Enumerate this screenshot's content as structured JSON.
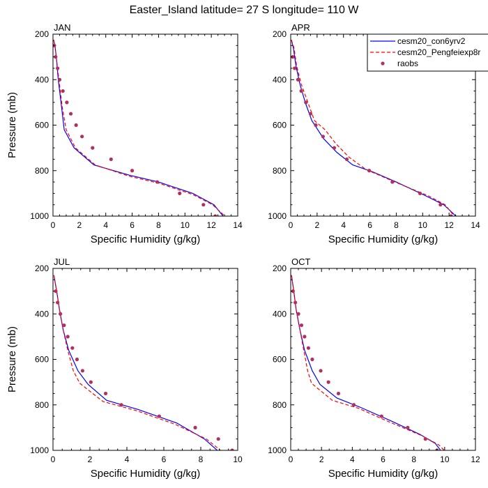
{
  "figure": {
    "title": "Easter_Island  latitude= 27 S longitude= 110 W"
  },
  "legend": {
    "entries": [
      {
        "label": "cesm20_con6yrv2",
        "style": "solid-line",
        "color": "#0000ff"
      },
      {
        "label": "cesm20_Pengfeiexp8r",
        "style": "dashed-line",
        "color": "#ff0000"
      },
      {
        "label": "raobs",
        "style": "marker",
        "color": "#b03060"
      }
    ]
  },
  "chart_data": [
    {
      "type": "line",
      "title": "JAN",
      "xlabel": "Specific Humidity (g/kg)",
      "ylabel": "Pressure (mb)",
      "xlim": [
        0,
        14
      ],
      "ylim": [
        1000,
        200
      ],
      "xticks": [
        0,
        2,
        4,
        6,
        8,
        10,
        12,
        14
      ],
      "yticks": [
        200,
        400,
        600,
        800,
        1000
      ],
      "series": [
        {
          "name": "cesm20_con6yrv2",
          "points": [
            [
              0.05,
              225
            ],
            [
              0.15,
              250
            ],
            [
              0.25,
              300
            ],
            [
              0.4,
              400
            ],
            [
              0.65,
              520
            ],
            [
              0.85,
              620
            ],
            [
              1.6,
              700
            ],
            [
              3.1,
              775
            ],
            [
              5.8,
              820
            ],
            [
              8.0,
              850
            ],
            [
              10.6,
              900
            ],
            [
              12.2,
              950
            ],
            [
              13.1,
              1015
            ]
          ]
        },
        {
          "name": "cesm20_Pengfeiexp8r",
          "points": [
            [
              0.05,
              225
            ],
            [
              0.15,
              250
            ],
            [
              0.25,
              300
            ],
            [
              0.45,
              400
            ],
            [
              0.7,
              520
            ],
            [
              1.0,
              620
            ],
            [
              1.7,
              700
            ],
            [
              3.2,
              775
            ],
            [
              5.8,
              825
            ],
            [
              8.0,
              855
            ],
            [
              10.6,
              905
            ],
            [
              12.1,
              950
            ],
            [
              13.3,
              1015
            ]
          ]
        },
        {
          "name": "raobs",
          "points": [
            [
              0.1,
              250
            ],
            [
              0.2,
              300
            ],
            [
              0.35,
              350
            ],
            [
              0.5,
              400
            ],
            [
              0.75,
              450
            ],
            [
              1.05,
              500
            ],
            [
              1.35,
              550
            ],
            [
              1.75,
              600
            ],
            [
              2.2,
              650
            ],
            [
              3.0,
              700
            ],
            [
              4.4,
              750
            ],
            [
              6.0,
              800
            ],
            [
              7.9,
              850
            ],
            [
              9.6,
              900
            ],
            [
              11.4,
              950
            ],
            [
              12.3,
              1000
            ]
          ]
        }
      ]
    },
    {
      "type": "line",
      "title": "APR",
      "xlabel": "Specific Humidity (g/kg)",
      "ylabel": "",
      "xlim": [
        0,
        14
      ],
      "ylim": [
        1000,
        200
      ],
      "xticks": [
        0,
        2,
        4,
        6,
        8,
        10,
        12,
        14
      ],
      "yticks": [
        200,
        400,
        600,
        800,
        1000
      ],
      "series": [
        {
          "name": "cesm20_con6yrv2",
          "points": [
            [
              0.05,
              225
            ],
            [
              0.2,
              260
            ],
            [
              0.4,
              340
            ],
            [
              0.7,
              420
            ],
            [
              1.1,
              500
            ],
            [
              1.6,
              580
            ],
            [
              2.5,
              660
            ],
            [
              3.5,
              720
            ],
            [
              4.7,
              775
            ],
            [
              6.2,
              805
            ],
            [
              8.0,
              850
            ],
            [
              10.2,
              910
            ],
            [
              11.6,
              950
            ],
            [
              12.8,
              1015
            ]
          ]
        },
        {
          "name": "cesm20_Pengfeiexp8r",
          "points": [
            [
              0.05,
              225
            ],
            [
              0.25,
              260
            ],
            [
              0.45,
              340
            ],
            [
              0.8,
              420
            ],
            [
              1.3,
              500
            ],
            [
              1.8,
              580
            ],
            [
              2.6,
              620
            ],
            [
              3.4,
              680
            ],
            [
              4.4,
              740
            ],
            [
              5.7,
              795
            ],
            [
              7.9,
              850
            ],
            [
              10.4,
              910
            ],
            [
              11.7,
              950
            ],
            [
              12.6,
              1015
            ]
          ]
        },
        {
          "name": "raobs",
          "points": [
            [
              0.15,
              300
            ],
            [
              0.3,
              350
            ],
            [
              0.55,
              400
            ],
            [
              0.8,
              450
            ],
            [
              1.15,
              500
            ],
            [
              1.5,
              550
            ],
            [
              1.9,
              600
            ],
            [
              2.45,
              650
            ],
            [
              3.3,
              700
            ],
            [
              4.25,
              750
            ],
            [
              5.95,
              800
            ],
            [
              7.7,
              850
            ],
            [
              9.8,
              900
            ],
            [
              11.35,
              950
            ],
            [
              12.15,
              1000
            ]
          ]
        }
      ]
    },
    {
      "type": "line",
      "title": "JUL",
      "xlabel": "Specific Humidity (g/kg)",
      "ylabel": "Pressure (mb)",
      "xlim": [
        0,
        10
      ],
      "ylim": [
        1000,
        200
      ],
      "xticks": [
        0,
        2,
        4,
        6,
        8,
        10
      ],
      "yticks": [
        200,
        400,
        600,
        800,
        1000
      ],
      "series": [
        {
          "name": "cesm20_con6yrv2",
          "points": [
            [
              0.05,
              230
            ],
            [
              0.2,
              300
            ],
            [
              0.35,
              380
            ],
            [
              0.55,
              470
            ],
            [
              0.85,
              560
            ],
            [
              1.35,
              650
            ],
            [
              1.9,
              710
            ],
            [
              2.9,
              780
            ],
            [
              4.6,
              820
            ],
            [
              6.7,
              880
            ],
            [
              8.2,
              950
            ],
            [
              9.1,
              1015
            ]
          ]
        },
        {
          "name": "cesm20_Pengfeiexp8r",
          "points": [
            [
              0.05,
              230
            ],
            [
              0.2,
              300
            ],
            [
              0.35,
              380
            ],
            [
              0.55,
              470
            ],
            [
              0.8,
              560
            ],
            [
              1.1,
              650
            ],
            [
              1.45,
              705
            ],
            [
              2.7,
              785
            ],
            [
              4.5,
              825
            ],
            [
              6.6,
              885
            ],
            [
              8.3,
              950
            ],
            [
              9.3,
              1015
            ]
          ]
        },
        {
          "name": "raobs",
          "points": [
            [
              0.15,
              300
            ],
            [
              0.25,
              350
            ],
            [
              0.4,
              400
            ],
            [
              0.6,
              450
            ],
            [
              0.8,
              500
            ],
            [
              1.05,
              550
            ],
            [
              1.3,
              600
            ],
            [
              1.6,
              650
            ],
            [
              2.05,
              700
            ],
            [
              2.85,
              750
            ],
            [
              3.7,
              800
            ],
            [
              5.75,
              850
            ],
            [
              7.7,
              900
            ],
            [
              8.95,
              950
            ],
            [
              9.7,
              1000
            ]
          ]
        }
      ]
    },
    {
      "type": "line",
      "title": "OCT",
      "xlabel": "Specific Humidity (g/kg)",
      "ylabel": "",
      "xlim": [
        0,
        12
      ],
      "ylim": [
        1000,
        200
      ],
      "xticks": [
        0,
        2,
        4,
        6,
        8,
        10,
        12
      ],
      "yticks": [
        200,
        400,
        600,
        800,
        1000
      ],
      "series": [
        {
          "name": "cesm20_con6yrv2",
          "points": [
            [
              0.05,
              230
            ],
            [
              0.2,
              300
            ],
            [
              0.35,
              380
            ],
            [
              0.6,
              470
            ],
            [
              0.9,
              560
            ],
            [
              1.4,
              650
            ],
            [
              1.9,
              710
            ],
            [
              3.0,
              770
            ],
            [
              4.5,
              810
            ],
            [
              6.5,
              870
            ],
            [
              8.4,
              930
            ],
            [
              9.4,
              970
            ],
            [
              9.9,
              1015
            ]
          ]
        },
        {
          "name": "cesm20_Pengfeiexp8r",
          "points": [
            [
              0.05,
              230
            ],
            [
              0.2,
              300
            ],
            [
              0.35,
              380
            ],
            [
              0.6,
              470
            ],
            [
              0.85,
              560
            ],
            [
              1.1,
              650
            ],
            [
              1.35,
              705
            ],
            [
              2.7,
              780
            ],
            [
              4.4,
              815
            ],
            [
              6.4,
              875
            ],
            [
              8.5,
              935
            ],
            [
              9.6,
              975
            ],
            [
              10.2,
              1015
            ]
          ]
        },
        {
          "name": "raobs",
          "points": [
            [
              0.15,
              300
            ],
            [
              0.3,
              350
            ],
            [
              0.5,
              400
            ],
            [
              0.7,
              450
            ],
            [
              0.9,
              500
            ],
            [
              1.15,
              550
            ],
            [
              1.4,
              600
            ],
            [
              1.95,
              650
            ],
            [
              2.45,
              700
            ],
            [
              3.1,
              750
            ],
            [
              4.1,
              800
            ],
            [
              5.9,
              850
            ],
            [
              7.6,
              900
            ],
            [
              8.75,
              950
            ],
            [
              9.5,
              1000
            ]
          ]
        }
      ]
    }
  ]
}
